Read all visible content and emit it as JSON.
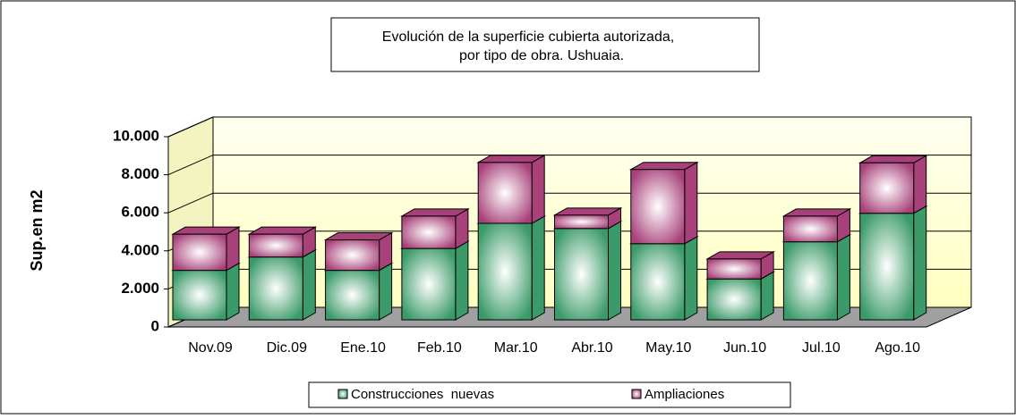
{
  "chart_data": {
    "type": "bar3d_stacked",
    "title": "Evolución de la superficie cubierta autorizada,",
    "subtitle": "por tipo de obra. Ushuaia.",
    "y_label": "Sup.en m2",
    "categories": [
      "Nov.09",
      "Dic.09",
      "Ene.10",
      "Feb.10",
      "Mar.10",
      "Abr.10",
      "May.10",
      "Jun.10",
      "Jul.10",
      "Ago.10"
    ],
    "series": [
      {
        "name": "Construcciones  nuevas",
        "color": "#3a9a68",
        "values": [
          2600,
          3300,
          2600,
          3750,
          5070,
          4800,
          4000,
          2150,
          4100,
          5600
        ]
      },
      {
        "name": "Ampliaciones",
        "color": "#a8417a",
        "values": [
          1900,
          1200,
          1600,
          1700,
          3200,
          700,
          3900,
          1050,
          1350,
          2650
        ]
      }
    ],
    "ylim": [
      0,
      10000
    ],
    "yticks": [
      0,
      {
        "value": 2000,
        "label": "2.000"
      },
      {
        "value": 4000,
        "label": "4.000"
      },
      {
        "value": 6000,
        "label": "6.000"
      },
      {
        "value": 8000,
        "label": "8.000"
      },
      {
        "value": 10000,
        "label": "10.000"
      }
    ],
    "grid": true
  }
}
